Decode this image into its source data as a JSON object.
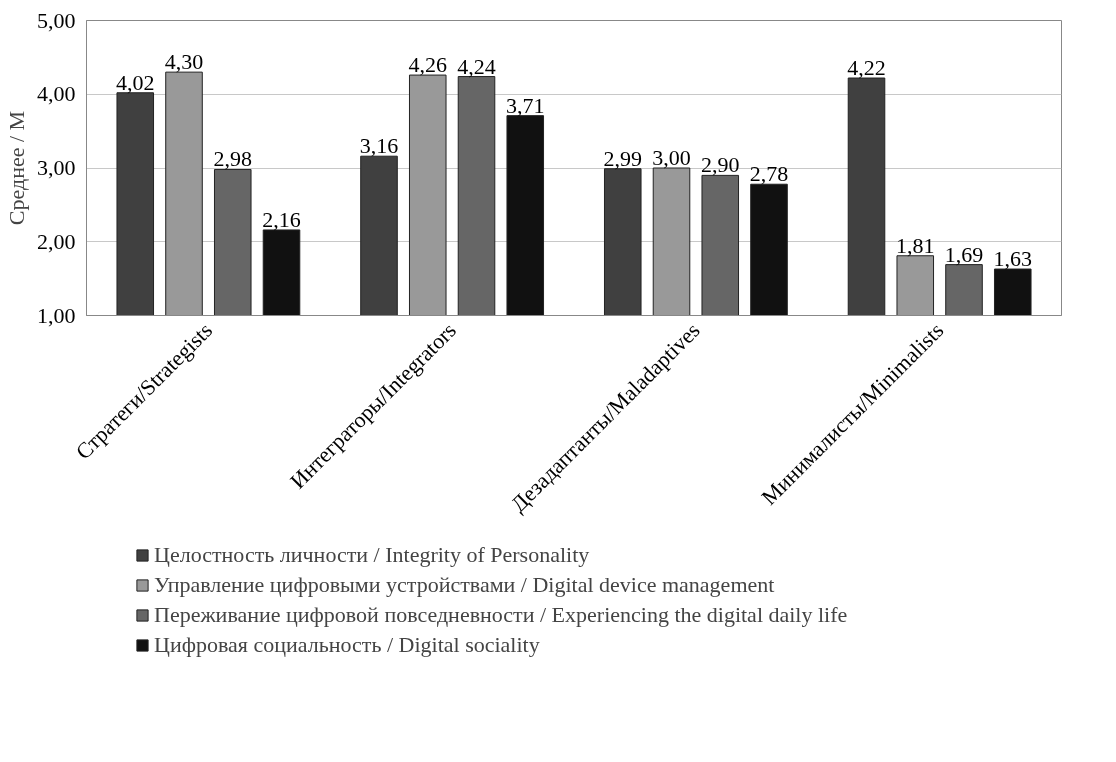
{
  "chart_data": {
    "type": "bar",
    "ylabel": "Среднее / М",
    "categories": [
      "Стратеги/Strategists",
      "Интеграторы/Integrators",
      "Дезадаптанты/Maladaptives",
      "Минималисты/Minimalists"
    ],
    "series": [
      {
        "name": "Целостность личности / Integrity of Personality",
        "color": "#404040",
        "values": [
          4.02,
          3.16,
          2.99,
          4.22
        ],
        "value_labels": [
          "4,02",
          "3,16",
          "2,99",
          "4,22"
        ]
      },
      {
        "name": "Управление цифровыми устройствами / Digital device management",
        "color": "#999999",
        "values": [
          4.3,
          4.26,
          3.0,
          1.81
        ],
        "value_labels": [
          "4,30",
          "4,26",
          "3,00",
          "1,81"
        ]
      },
      {
        "name": "Переживание цифровой повседневности / Experiencing the digital daily life",
        "color": "#666666",
        "values": [
          2.98,
          4.24,
          2.9,
          1.69
        ],
        "value_labels": [
          "2,98",
          "4,24",
          "2,90",
          "1,69"
        ]
      },
      {
        "name": "Цифровая социальность / Digital sociality",
        "color": "#111111",
        "values": [
          2.16,
          3.71,
          2.78,
          1.63
        ],
        "value_labels": [
          "2,16",
          "3,71",
          "2,78",
          "1,63"
        ]
      }
    ],
    "ylim": [
      1,
      5
    ],
    "yticks": [
      {
        "value": 1,
        "label": "1,00"
      },
      {
        "value": 2,
        "label": "2,00"
      },
      {
        "value": 3,
        "label": "3,00"
      },
      {
        "value": 4,
        "label": "4,00"
      },
      {
        "value": 5,
        "label": "5,00"
      }
    ],
    "grid": "y",
    "legend": "bottom"
  }
}
